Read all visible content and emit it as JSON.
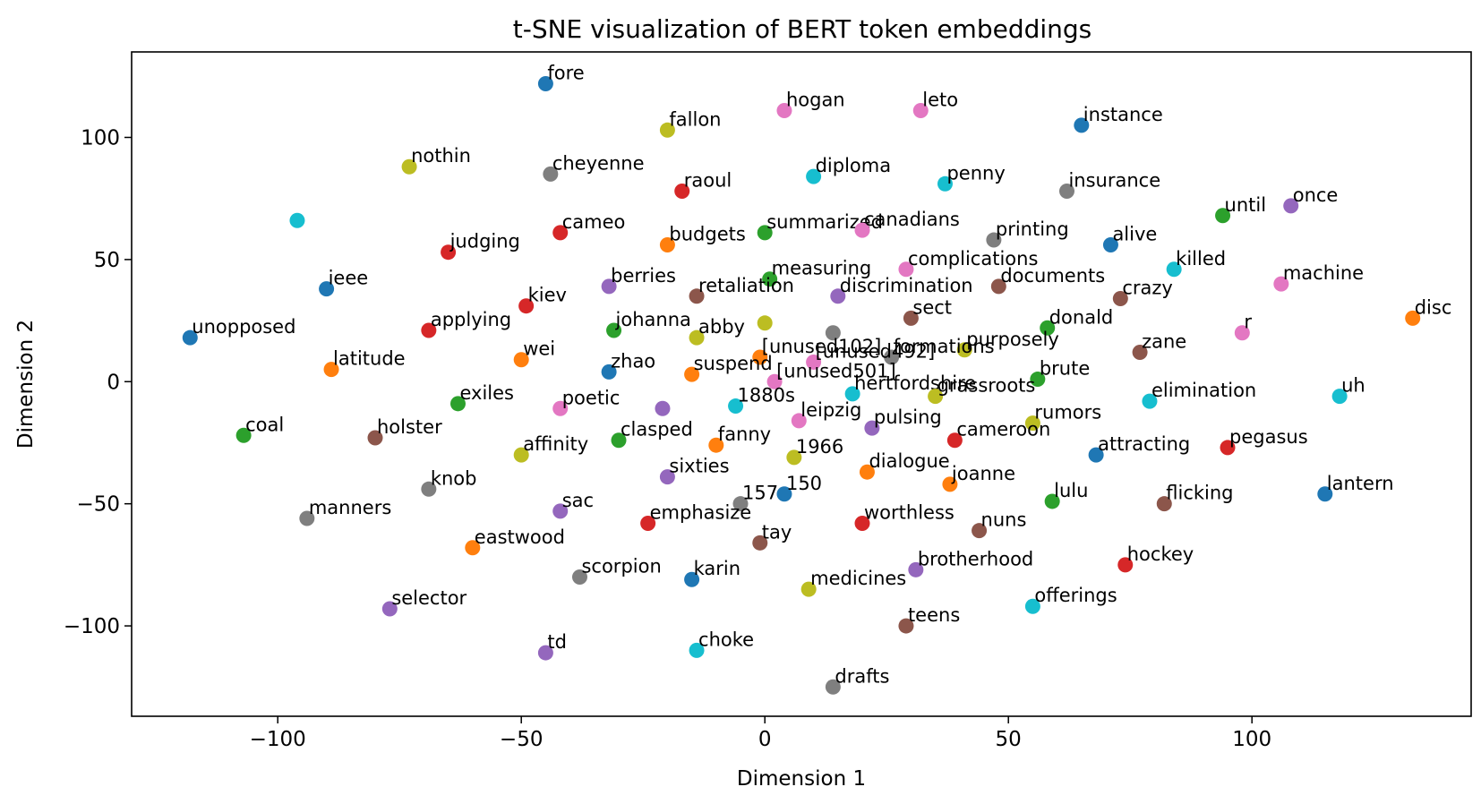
{
  "chart_data": {
    "type": "scatter",
    "title": "t-SNE visualization of BERT token embeddings",
    "xlabel": "Dimension 1",
    "ylabel": "Dimension 2",
    "xlim": [
      -130,
      145
    ],
    "ylim": [
      -137,
      135
    ],
    "xticks": [
      -100,
      -50,
      0,
      50,
      100
    ],
    "yticks": [
      -100,
      -50,
      0,
      50,
      100
    ],
    "grid": false,
    "palette": [
      "#1f77b4",
      "#ff7f0e",
      "#2ca02c",
      "#d62728",
      "#9467bd",
      "#8c564b",
      "#e377c2",
      "#7f7f7f",
      "#bcbd22",
      "#17becf"
    ],
    "points": [
      {
        "label": "fore",
        "x": -45,
        "y": 122,
        "c": 0
      },
      {
        "label": "hogan",
        "x": 4,
        "y": 111,
        "c": 6
      },
      {
        "label": "leto",
        "x": 32,
        "y": 111,
        "c": 6
      },
      {
        "label": "instance",
        "x": 65,
        "y": 105,
        "c": 0
      },
      {
        "label": "fallon",
        "x": -20,
        "y": 103,
        "c": 8
      },
      {
        "label": "nothin",
        "x": -73,
        "y": 88,
        "c": 8
      },
      {
        "label": "cheyenne",
        "x": -44,
        "y": 85,
        "c": 7
      },
      {
        "label": "diploma",
        "x": 10,
        "y": 84,
        "c": 9
      },
      {
        "label": "penny",
        "x": 37,
        "y": 81,
        "c": 9
      },
      {
        "label": "raoul",
        "x": -17,
        "y": 78,
        "c": 3
      },
      {
        "label": "insurance",
        "x": 62,
        "y": 78,
        "c": 7
      },
      {
        "label": "once",
        "x": 108,
        "y": 72,
        "c": 4
      },
      {
        "label": "until",
        "x": 94,
        "y": 68,
        "c": 2
      },
      {
        "label": "",
        "x": -96,
        "y": 66,
        "c": 9
      },
      {
        "label": "cameo",
        "x": -42,
        "y": 61,
        "c": 3
      },
      {
        "label": "summarized",
        "x": 0,
        "y": 61,
        "c": 2
      },
      {
        "label": "canadians",
        "x": 20,
        "y": 62,
        "c": 6
      },
      {
        "label": "printing",
        "x": 47,
        "y": 58,
        "c": 7
      },
      {
        "label": "alive",
        "x": 71,
        "y": 56,
        "c": 0
      },
      {
        "label": "budgets",
        "x": -20,
        "y": 56,
        "c": 1
      },
      {
        "label": "judging",
        "x": -65,
        "y": 53,
        "c": 3
      },
      {
        "label": "killed",
        "x": 84,
        "y": 46,
        "c": 9
      },
      {
        "label": "complications",
        "x": 29,
        "y": 46,
        "c": 6
      },
      {
        "label": "machine",
        "x": 106,
        "y": 40,
        "c": 6
      },
      {
        "label": "measuring",
        "x": 1,
        "y": 42,
        "c": 2
      },
      {
        "label": "berries",
        "x": -32,
        "y": 39,
        "c": 4
      },
      {
        "label": "documents",
        "x": 48,
        "y": 39,
        "c": 5
      },
      {
        "label": "ieee",
        "x": -90,
        "y": 38,
        "c": 0
      },
      {
        "label": "retaliation",
        "x": -14,
        "y": 35,
        "c": 5
      },
      {
        "label": "discrimination",
        "x": 15,
        "y": 35,
        "c": 4
      },
      {
        "label": "crazy",
        "x": 73,
        "y": 34,
        "c": 5
      },
      {
        "label": "kiev",
        "x": -49,
        "y": 31,
        "c": 3
      },
      {
        "label": "sect",
        "x": 30,
        "y": 26,
        "c": 5
      },
      {
        "label": "disc",
        "x": 133,
        "y": 26,
        "c": 1
      },
      {
        "label": "",
        "x": 0,
        "y": 24,
        "c": 8
      },
      {
        "label": "applying",
        "x": -69,
        "y": 21,
        "c": 3
      },
      {
        "label": "johanna",
        "x": -31,
        "y": 21,
        "c": 2
      },
      {
        "label": "donald",
        "x": 58,
        "y": 22,
        "c": 2
      },
      {
        "label": "",
        "x": 14,
        "y": 20,
        "c": 7
      },
      {
        "label": "r",
        "x": 98,
        "y": 20,
        "c": 6
      },
      {
        "label": "unopposed",
        "x": -118,
        "y": 18,
        "c": 0
      },
      {
        "label": "abby",
        "x": -14,
        "y": 18,
        "c": 8
      },
      {
        "label": "purposely",
        "x": 41,
        "y": 13,
        "c": 8
      },
      {
        "label": "zane",
        "x": 77,
        "y": 12,
        "c": 5
      },
      {
        "label": "[unused102]",
        "x": -1,
        "y": 10,
        "c": 1
      },
      {
        "label": "formations",
        "x": 26,
        "y": 10,
        "c": 7
      },
      {
        "label": "[unused492]",
        "x": 10,
        "y": 8,
        "c": 6
      },
      {
        "label": "wei",
        "x": -50,
        "y": 9,
        "c": 1
      },
      {
        "label": "latitude",
        "x": -89,
        "y": 5,
        "c": 1
      },
      {
        "label": "zhao",
        "x": -32,
        "y": 4,
        "c": 0
      },
      {
        "label": "suspend",
        "x": -15,
        "y": 3,
        "c": 1
      },
      {
        "label": "[unused501]",
        "x": 2,
        "y": 0,
        "c": 6
      },
      {
        "label": "brute",
        "x": 56,
        "y": 1,
        "c": 2
      },
      {
        "label": "hertfordshire",
        "x": 18,
        "y": -5,
        "c": 9
      },
      {
        "label": "grassroots",
        "x": 35,
        "y": -6,
        "c": 8
      },
      {
        "label": "uh",
        "x": 118,
        "y": -6,
        "c": 9
      },
      {
        "label": "elimination",
        "x": 79,
        "y": -8,
        "c": 9
      },
      {
        "label": "exiles",
        "x": -63,
        "y": -9,
        "c": 2
      },
      {
        "label": "poetic",
        "x": -42,
        "y": -11,
        "c": 6
      },
      {
        "label": "",
        "x": -21,
        "y": -11,
        "c": 4
      },
      {
        "label": "1880s",
        "x": -6,
        "y": -10,
        "c": 9
      },
      {
        "label": "leipzig",
        "x": 7,
        "y": -16,
        "c": 6
      },
      {
        "label": "rumors",
        "x": 55,
        "y": -17,
        "c": 8
      },
      {
        "label": "pulsing",
        "x": 22,
        "y": -19,
        "c": 4
      },
      {
        "label": "coal",
        "x": -107,
        "y": -22,
        "c": 2
      },
      {
        "label": "holster",
        "x": -80,
        "y": -23,
        "c": 5
      },
      {
        "label": "cameroon",
        "x": 39,
        "y": -24,
        "c": 3
      },
      {
        "label": "clasped",
        "x": -30,
        "y": -24,
        "c": 2
      },
      {
        "label": "fanny",
        "x": -10,
        "y": -26,
        "c": 1
      },
      {
        "label": "pegasus",
        "x": 95,
        "y": -27,
        "c": 3
      },
      {
        "label": "attracting",
        "x": 68,
        "y": -30,
        "c": 0
      },
      {
        "label": "affinity",
        "x": -50,
        "y": -30,
        "c": 8
      },
      {
        "label": "1966",
        "x": 6,
        "y": -31,
        "c": 8
      },
      {
        "label": "dialogue",
        "x": 21,
        "y": -37,
        "c": 1
      },
      {
        "label": "sixties",
        "x": -20,
        "y": -39,
        "c": 4
      },
      {
        "label": "joanne",
        "x": 38,
        "y": -42,
        "c": 1
      },
      {
        "label": "knob",
        "x": -69,
        "y": -44,
        "c": 7
      },
      {
        "label": "lantern",
        "x": 115,
        "y": -46,
        "c": 0
      },
      {
        "label": "150",
        "x": 4,
        "y": -46,
        "c": 0
      },
      {
        "label": "lulu",
        "x": 59,
        "y": -49,
        "c": 2
      },
      {
        "label": "flicking",
        "x": 82,
        "y": -50,
        "c": 5
      },
      {
        "label": "157",
        "x": -5,
        "y": -50,
        "c": 7
      },
      {
        "label": "sac",
        "x": -42,
        "y": -53,
        "c": 4
      },
      {
        "label": "manners",
        "x": -94,
        "y": -56,
        "c": 7
      },
      {
        "label": "emphasize",
        "x": -24,
        "y": -58,
        "c": 3
      },
      {
        "label": "worthless",
        "x": 20,
        "y": -58,
        "c": 3
      },
      {
        "label": "nuns",
        "x": 44,
        "y": -61,
        "c": 5
      },
      {
        "label": "tay",
        "x": -1,
        "y": -66,
        "c": 5
      },
      {
        "label": "eastwood",
        "x": -60,
        "y": -68,
        "c": 1
      },
      {
        "label": "hockey",
        "x": 74,
        "y": -75,
        "c": 3
      },
      {
        "label": "brotherhood",
        "x": 31,
        "y": -77,
        "c": 4
      },
      {
        "label": "scorpion",
        "x": -38,
        "y": -80,
        "c": 7
      },
      {
        "label": "karin",
        "x": -15,
        "y": -81,
        "c": 0
      },
      {
        "label": "medicines",
        "x": 9,
        "y": -85,
        "c": 8
      },
      {
        "label": "selector",
        "x": -77,
        "y": -93,
        "c": 4
      },
      {
        "label": "offerings",
        "x": 55,
        "y": -92,
        "c": 9
      },
      {
        "label": "teens",
        "x": 29,
        "y": -100,
        "c": 5
      },
      {
        "label": "choke",
        "x": -14,
        "y": -110,
        "c": 9
      },
      {
        "label": "td",
        "x": -45,
        "y": -111,
        "c": 4
      },
      {
        "label": "drafts",
        "x": 14,
        "y": -125,
        "c": 7
      }
    ]
  }
}
